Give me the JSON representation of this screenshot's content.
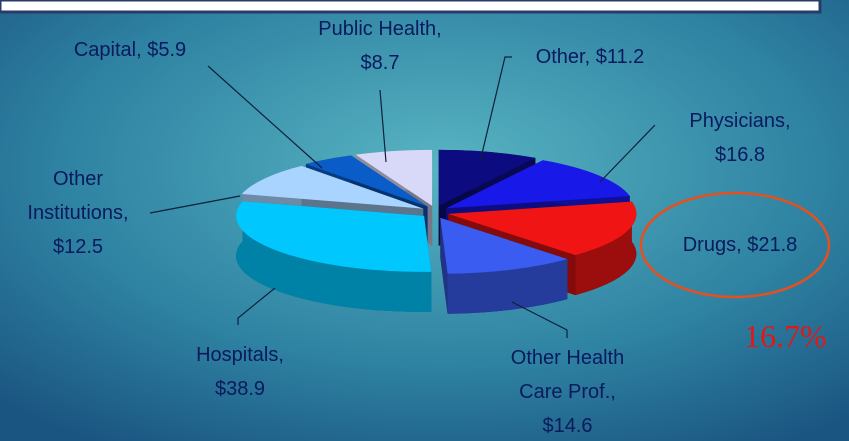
{
  "chart_data": {
    "type": "pie",
    "categories": [
      "Other,",
      "Physicians,",
      "Drugs,",
      "Other Health Care Prof.,",
      "Hospitals,",
      "Other Institutions,",
      "Capital,",
      "Public Health,"
    ],
    "values": [
      11.2,
      16.8,
      21.8,
      14.6,
      38.9,
      12.5,
      5.9,
      8.7
    ],
    "value_labels": [
      "$11.2",
      "$16.8",
      "$21.8",
      "$14.6",
      "$38.9",
      "$12.5",
      "$5.9",
      "$8.7"
    ],
    "colors": [
      "#0c0c80",
      "#1818e8",
      "#f01414",
      "#3a5cf0",
      "#00c8ff",
      "#a8d4ff",
      "#0a5cc8",
      "#d8d8f8"
    ],
    "annotation": "16.7%"
  }
}
